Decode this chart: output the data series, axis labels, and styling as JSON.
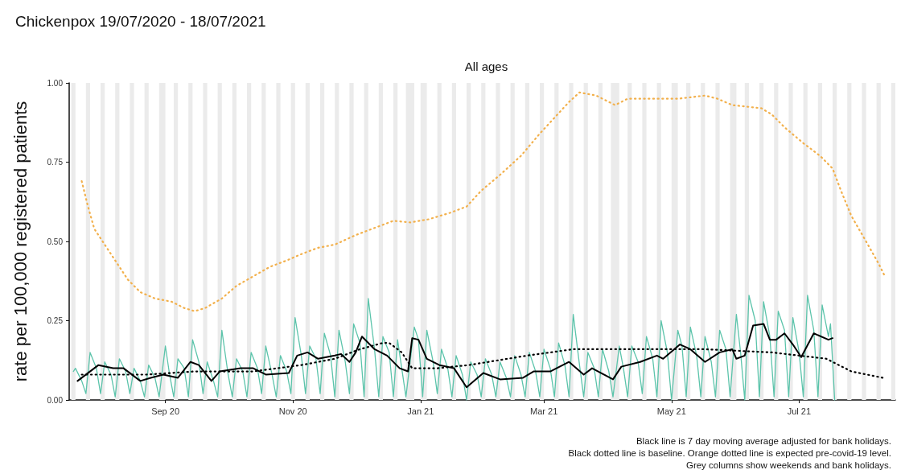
{
  "chart_data": {
    "type": "line",
    "title": "Chickenpox 19/07/2020 - 18/07/2021",
    "subtitle": "All ages",
    "ylabel": "rate per 100,000 registered patients",
    "annotations": [
      "Black line is 7 day moving average adjusted for bank holidays.",
      "Black dotted line is baseline. Orange dotted line is expected pre-covid-19 level.",
      "Grey columns show weekends and bank holidays."
    ],
    "marker": "none",
    "xlim": [
      "2020-07-17",
      "2021-08-16"
    ],
    "xticks": [
      {
        "value": "2020-09-01",
        "label": "Sep 20"
      },
      {
        "value": "2020-11-01",
        "label": "Nov 20"
      },
      {
        "value": "2021-01-01",
        "label": "Jan 21"
      },
      {
        "value": "2021-03-01",
        "label": "Mar 21"
      },
      {
        "value": "2021-05-01",
        "label": "May 21"
      },
      {
        "value": "2021-07-01",
        "label": "Jul 21"
      }
    ],
    "ylim": [
      0,
      1
    ],
    "yticks": [
      {
        "value": 0,
        "label": "0.00"
      },
      {
        "value": 0.25,
        "label": "0.25"
      },
      {
        "value": 0.5,
        "label": "0.50"
      },
      {
        "value": 0.75,
        "label": "0.75"
      },
      {
        "value": 1,
        "label": "1.00"
      }
    ],
    "series": [
      {
        "color": "#5cc4ab",
        "line_style": "solid",
        "x": [
          "2020-07-19",
          "2020-07-20",
          "2020-07-23",
          "2020-07-25",
          "2020-07-27",
          "2020-07-30",
          "2020-08-01",
          "2020-08-03",
          "2020-08-06",
          "2020-08-08",
          "2020-08-10",
          "2020-08-13",
          "2020-08-15",
          "2020-08-17",
          "2020-08-20",
          "2020-08-22",
          "2020-08-24",
          "2020-08-27",
          "2020-08-29",
          "2020-09-01",
          "2020-09-03",
          "2020-09-05",
          "2020-09-07",
          "2020-09-10",
          "2020-09-12",
          "2020-09-14",
          "2020-09-17",
          "2020-09-19",
          "2020-09-21",
          "2020-09-24",
          "2020-09-26",
          "2020-09-28",
          "2020-10-01",
          "2020-10-03",
          "2020-10-05",
          "2020-10-08",
          "2020-10-10",
          "2020-10-12",
          "2020-10-15",
          "2020-10-17",
          "2020-10-19",
          "2020-10-22",
          "2020-10-24",
          "2020-10-26",
          "2020-10-29",
          "2020-10-31",
          "2020-11-02",
          "2020-11-05",
          "2020-11-07",
          "2020-11-09",
          "2020-11-12",
          "2020-11-14",
          "2020-11-16",
          "2020-11-19",
          "2020-11-21",
          "2020-11-23",
          "2020-11-26",
          "2020-11-28",
          "2020-11-30",
          "2020-12-03",
          "2020-12-05",
          "2020-12-07",
          "2020-12-10",
          "2020-12-12",
          "2020-12-14",
          "2020-12-17",
          "2020-12-19",
          "2020-12-21",
          "2020-12-23",
          "2020-12-25",
          "2020-12-29",
          "2020-12-31",
          "2021-01-02",
          "2021-01-04",
          "2021-01-07",
          "2021-01-09",
          "2021-01-11",
          "2021-01-14",
          "2021-01-16",
          "2021-01-18",
          "2021-01-21",
          "2021-01-23",
          "2021-01-25",
          "2021-01-28",
          "2021-01-30",
          "2021-02-01",
          "2021-02-04",
          "2021-02-06",
          "2021-02-08",
          "2021-02-11",
          "2021-02-13",
          "2021-02-15",
          "2021-02-18",
          "2021-02-20",
          "2021-02-22",
          "2021-02-25",
          "2021-02-27",
          "2021-03-01",
          "2021-03-04",
          "2021-03-06",
          "2021-03-08",
          "2021-03-11",
          "2021-03-13",
          "2021-03-15",
          "2021-03-18",
          "2021-03-20",
          "2021-03-22",
          "2021-03-25",
          "2021-03-27",
          "2021-03-29",
          "2021-04-01",
          "2021-04-03",
          "2021-04-06",
          "2021-04-08",
          "2021-04-10",
          "2021-04-12",
          "2021-04-15",
          "2021-04-17",
          "2021-04-19",
          "2021-04-22",
          "2021-04-24",
          "2021-04-26",
          "2021-04-29",
          "2021-05-01",
          "2021-05-04",
          "2021-05-06",
          "2021-05-08",
          "2021-05-10",
          "2021-05-13",
          "2021-05-15",
          "2021-05-17",
          "2021-05-20",
          "2021-05-22",
          "2021-05-24",
          "2021-05-27",
          "2021-05-29",
          "2021-06-01",
          "2021-06-03",
          "2021-06-05",
          "2021-06-07",
          "2021-06-10",
          "2021-06-12",
          "2021-06-14",
          "2021-06-17",
          "2021-06-19",
          "2021-06-21",
          "2021-06-24",
          "2021-06-26",
          "2021-06-28",
          "2021-07-01",
          "2021-07-03",
          "2021-07-05",
          "2021-07-08",
          "2021-07-10",
          "2021-07-12",
          "2021-07-15",
          "2021-07-16",
          "2021-07-18"
        ],
        "values": [
          0.09,
          0.1,
          0.06,
          0.02,
          0.15,
          0.1,
          0.02,
          0.12,
          0.08,
          0.01,
          0.13,
          0.09,
          0.02,
          0.1,
          0.06,
          0.01,
          0.11,
          0.07,
          0.01,
          0.17,
          0.08,
          0.01,
          0.13,
          0.1,
          0.01,
          0.19,
          0.12,
          0.02,
          0.12,
          0.06,
          0.01,
          0.22,
          0.08,
          0.01,
          0.13,
          0.09,
          0.01,
          0.15,
          0.1,
          0.02,
          0.17,
          0.08,
          0.01,
          0.14,
          0.09,
          0.02,
          0.26,
          0.14,
          0.02,
          0.17,
          0.13,
          0.02,
          0.21,
          0.14,
          0.01,
          0.22,
          0.12,
          0.02,
          0.24,
          0.18,
          0.01,
          0.32,
          0.16,
          0.01,
          0.2,
          0.15,
          0.01,
          0.19,
          0.1,
          0.01,
          0.23,
          0.19,
          0.01,
          0.22,
          0.12,
          0.02,
          0.16,
          0.1,
          0.01,
          0.14,
          0.08,
          0.0,
          0.12,
          0.08,
          0.01,
          0.13,
          0.08,
          0.01,
          0.12,
          0.07,
          0.01,
          0.14,
          0.08,
          0.01,
          0.15,
          0.09,
          0.01,
          0.16,
          0.1,
          0.01,
          0.18,
          0.11,
          0.01,
          0.27,
          0.11,
          0.01,
          0.15,
          0.1,
          0.01,
          0.16,
          0.09,
          0.01,
          0.17,
          0.1,
          0.01,
          0.17,
          0.12,
          0.02,
          0.2,
          0.13,
          0.01,
          0.25,
          0.15,
          0.0,
          0.22,
          0.17,
          0.01,
          0.23,
          0.14,
          0.01,
          0.2,
          0.12,
          0.01,
          0.22,
          0.16,
          0.01,
          0.27,
          0.15,
          0.0,
          0.33,
          0.25,
          0.01,
          0.31,
          0.2,
          0.01,
          0.28,
          0.22,
          0.01,
          0.26,
          0.15,
          0.01,
          0.33,
          0.22,
          0.01,
          0.3,
          0.2,
          0.24,
          0.0
        ]
      },
      {
        "color": "#000000",
        "line_style": "solid",
        "x": [
          "2020-07-21",
          "2020-07-31",
          "2020-08-07",
          "2020-08-12",
          "2020-08-20",
          "2020-08-25",
          "2020-08-31",
          "2020-09-07",
          "2020-09-13",
          "2020-09-17",
          "2020-09-23",
          "2020-09-27",
          "2020-10-07",
          "2020-10-13",
          "2020-10-19",
          "2020-10-30",
          "2020-11-03",
          "2020-11-08",
          "2020-11-13",
          "2020-11-21",
          "2020-11-24",
          "2020-11-28",
          "2020-12-01",
          "2020-12-04",
          "2020-12-10",
          "2020-12-16",
          "2020-12-22",
          "2020-12-26",
          "2020-12-28",
          "2020-12-31",
          "2021-01-04",
          "2021-01-10",
          "2021-01-17",
          "2021-01-23",
          "2021-01-31",
          "2021-02-08",
          "2021-02-19",
          "2021-02-24",
          "2021-03-04",
          "2021-03-13",
          "2021-03-20",
          "2021-03-24",
          "2021-04-03",
          "2021-04-07",
          "2021-04-16",
          "2021-04-24",
          "2021-04-27",
          "2021-05-05",
          "2021-05-10",
          "2021-05-17",
          "2021-05-24",
          "2021-05-30",
          "2021-06-01",
          "2021-06-05",
          "2021-06-09",
          "2021-06-14",
          "2021-06-17",
          "2021-06-20",
          "2021-06-24",
          "2021-06-28",
          "2021-07-02",
          "2021-07-08",
          "2021-07-15",
          "2021-07-17"
        ],
        "values": [
          0.06,
          0.11,
          0.1,
          0.1,
          0.06,
          0.07,
          0.08,
          0.07,
          0.12,
          0.11,
          0.06,
          0.09,
          0.1,
          0.1,
          0.08,
          0.085,
          0.14,
          0.15,
          0.13,
          0.14,
          0.145,
          0.12,
          0.15,
          0.2,
          0.16,
          0.14,
          0.1,
          0.09,
          0.195,
          0.19,
          0.13,
          0.11,
          0.1,
          0.04,
          0.085,
          0.065,
          0.07,
          0.09,
          0.09,
          0.12,
          0.08,
          0.1,
          0.065,
          0.105,
          0.12,
          0.14,
          0.13,
          0.175,
          0.16,
          0.12,
          0.15,
          0.16,
          0.13,
          0.14,
          0.235,
          0.24,
          0.19,
          0.19,
          0.21,
          0.175,
          0.135,
          0.21,
          0.19,
          0.195
        ]
      },
      {
        "color": "#000000",
        "line_style": "dotted",
        "x": [
          "2020-07-23",
          "2020-08-04",
          "2020-08-23",
          "2020-09-15",
          "2020-10-13",
          "2020-11-05",
          "2020-11-21",
          "2020-12-03",
          "2020-12-14",
          "2020-12-17",
          "2020-12-23",
          "2020-12-28",
          "2021-01-09",
          "2021-01-24",
          "2021-02-21",
          "2021-03-15",
          "2021-04-04",
          "2021-05-17",
          "2021-06-18",
          "2021-07-14",
          "2021-07-26",
          "2021-08-10"
        ],
        "values": [
          0.08,
          0.08,
          0.08,
          0.09,
          0.09,
          0.11,
          0.13,
          0.16,
          0.18,
          0.18,
          0.15,
          0.1,
          0.1,
          0.11,
          0.14,
          0.16,
          0.16,
          0.16,
          0.15,
          0.13,
          0.09,
          0.07
        ]
      },
      {
        "color": "#f2b04c",
        "line_style": "dotted",
        "x": [
          "2020-07-23",
          "2020-07-26",
          "2020-07-29",
          "2020-08-03",
          "2020-08-09",
          "2020-08-14",
          "2020-08-20",
          "2020-08-27",
          "2020-09-04",
          "2020-09-10",
          "2020-09-15",
          "2020-09-20",
          "2020-09-28",
          "2020-10-05",
          "2020-10-13",
          "2020-10-21",
          "2020-10-29",
          "2020-11-05",
          "2020-11-13",
          "2020-11-21",
          "2020-12-01",
          "2020-12-05",
          "2020-12-19",
          "2020-12-27",
          "2021-01-05",
          "2021-01-15",
          "2021-01-23",
          "2021-01-30",
          "2021-02-08",
          "2021-02-18",
          "2021-02-27",
          "2021-03-06",
          "2021-03-13",
          "2021-03-18",
          "2021-03-26",
          "2021-04-04",
          "2021-04-10",
          "2021-05-04",
          "2021-05-17",
          "2021-05-23",
          "2021-05-30",
          "2021-06-13",
          "2021-06-18",
          "2021-06-24",
          "2021-07-03",
          "2021-07-11",
          "2021-07-17",
          "2021-07-21",
          "2021-07-26",
          "2021-08-02",
          "2021-08-08",
          "2021-08-11"
        ],
        "values": [
          0.69,
          0.61,
          0.54,
          0.49,
          0.43,
          0.38,
          0.34,
          0.32,
          0.31,
          0.29,
          0.28,
          0.29,
          0.32,
          0.36,
          0.39,
          0.42,
          0.44,
          0.46,
          0.48,
          0.49,
          0.52,
          0.53,
          0.565,
          0.56,
          0.57,
          0.59,
          0.61,
          0.66,
          0.71,
          0.77,
          0.84,
          0.89,
          0.94,
          0.97,
          0.96,
          0.93,
          0.95,
          0.95,
          0.96,
          0.95,
          0.93,
          0.92,
          0.9,
          0.86,
          0.81,
          0.77,
          0.73,
          0.66,
          0.58,
          0.5,
          0.43,
          0.39
        ]
      }
    ],
    "bands": [
      {
        "axis": "x",
        "from": "2020-07-18",
        "to": "2020-07-20",
        "color": "#ebebeb"
      },
      {
        "axis": "x",
        "from": "2020-07-25",
        "to": "2020-07-27",
        "color": "#ebebeb"
      },
      {
        "axis": "x",
        "from": "2020-08-01",
        "to": "2020-08-03",
        "color": "#ebebeb"
      },
      {
        "axis": "x",
        "from": "2020-08-08",
        "to": "2020-08-10",
        "color": "#ebebeb"
      },
      {
        "axis": "x",
        "from": "2020-08-15",
        "to": "2020-08-17",
        "color": "#ebebeb"
      },
      {
        "axis": "x",
        "from": "2020-08-22",
        "to": "2020-08-24",
        "color": "#ebebeb"
      },
      {
        "axis": "x",
        "from": "2020-08-29",
        "to": "2020-09-01",
        "color": "#ebebeb"
      },
      {
        "axis": "x",
        "from": "2020-09-05",
        "to": "2020-09-07",
        "color": "#ebebeb"
      },
      {
        "axis": "x",
        "from": "2020-09-12",
        "to": "2020-09-14",
        "color": "#ebebeb"
      },
      {
        "axis": "x",
        "from": "2020-09-19",
        "to": "2020-09-21",
        "color": "#ebebeb"
      },
      {
        "axis": "x",
        "from": "2020-09-26",
        "to": "2020-09-28",
        "color": "#ebebeb"
      },
      {
        "axis": "x",
        "from": "2020-10-03",
        "to": "2020-10-05",
        "color": "#ebebeb"
      },
      {
        "axis": "x",
        "from": "2020-10-10",
        "to": "2020-10-12",
        "color": "#ebebeb"
      },
      {
        "axis": "x",
        "from": "2020-10-17",
        "to": "2020-10-19",
        "color": "#ebebeb"
      },
      {
        "axis": "x",
        "from": "2020-10-24",
        "to": "2020-10-26",
        "color": "#ebebeb"
      },
      {
        "axis": "x",
        "from": "2020-10-31",
        "to": "2020-11-02",
        "color": "#ebebeb"
      },
      {
        "axis": "x",
        "from": "2020-11-07",
        "to": "2020-11-09",
        "color": "#ebebeb"
      },
      {
        "axis": "x",
        "from": "2020-11-14",
        "to": "2020-11-16",
        "color": "#ebebeb"
      },
      {
        "axis": "x",
        "from": "2020-11-21",
        "to": "2020-11-23",
        "color": "#ebebeb"
      },
      {
        "axis": "x",
        "from": "2020-11-28",
        "to": "2020-11-30",
        "color": "#ebebeb"
      },
      {
        "axis": "x",
        "from": "2020-12-05",
        "to": "2020-12-07",
        "color": "#ebebeb"
      },
      {
        "axis": "x",
        "from": "2020-12-12",
        "to": "2020-12-14",
        "color": "#ebebeb"
      },
      {
        "axis": "x",
        "from": "2020-12-19",
        "to": "2020-12-21",
        "color": "#ebebeb"
      },
      {
        "axis": "x",
        "from": "2020-12-25",
        "to": "2020-12-29",
        "color": "#ebebeb"
      },
      {
        "axis": "x",
        "from": "2021-01-01",
        "to": "2021-01-04",
        "color": "#ebebeb"
      },
      {
        "axis": "x",
        "from": "2021-01-09",
        "to": "2021-01-11",
        "color": "#ebebeb"
      },
      {
        "axis": "x",
        "from": "2021-01-16",
        "to": "2021-01-18",
        "color": "#ebebeb"
      },
      {
        "axis": "x",
        "from": "2021-01-23",
        "to": "2021-01-25",
        "color": "#ebebeb"
      },
      {
        "axis": "x",
        "from": "2021-01-30",
        "to": "2021-02-01",
        "color": "#ebebeb"
      },
      {
        "axis": "x",
        "from": "2021-02-06",
        "to": "2021-02-08",
        "color": "#ebebeb"
      },
      {
        "axis": "x",
        "from": "2021-02-13",
        "to": "2021-02-15",
        "color": "#ebebeb"
      },
      {
        "axis": "x",
        "from": "2021-02-20",
        "to": "2021-02-22",
        "color": "#ebebeb"
      },
      {
        "axis": "x",
        "from": "2021-02-27",
        "to": "2021-03-01",
        "color": "#ebebeb"
      },
      {
        "axis": "x",
        "from": "2021-03-06",
        "to": "2021-03-08",
        "color": "#ebebeb"
      },
      {
        "axis": "x",
        "from": "2021-03-13",
        "to": "2021-03-15",
        "color": "#ebebeb"
      },
      {
        "axis": "x",
        "from": "2021-03-20",
        "to": "2021-03-22",
        "color": "#ebebeb"
      },
      {
        "axis": "x",
        "from": "2021-03-27",
        "to": "2021-03-29",
        "color": "#ebebeb"
      },
      {
        "axis": "x",
        "from": "2021-04-02",
        "to": "2021-04-06",
        "color": "#ebebeb"
      },
      {
        "axis": "x",
        "from": "2021-04-10",
        "to": "2021-04-12",
        "color": "#ebebeb"
      },
      {
        "axis": "x",
        "from": "2021-04-17",
        "to": "2021-04-19",
        "color": "#ebebeb"
      },
      {
        "axis": "x",
        "from": "2021-04-24",
        "to": "2021-04-26",
        "color": "#ebebeb"
      },
      {
        "axis": "x",
        "from": "2021-05-01",
        "to": "2021-05-04",
        "color": "#ebebeb"
      },
      {
        "axis": "x",
        "from": "2021-05-08",
        "to": "2021-05-10",
        "color": "#ebebeb"
      },
      {
        "axis": "x",
        "from": "2021-05-15",
        "to": "2021-05-17",
        "color": "#ebebeb"
      },
      {
        "axis": "x",
        "from": "2021-05-22",
        "to": "2021-05-24",
        "color": "#ebebeb"
      },
      {
        "axis": "x",
        "from": "2021-05-29",
        "to": "2021-06-01",
        "color": "#ebebeb"
      },
      {
        "axis": "x",
        "from": "2021-06-05",
        "to": "2021-06-07",
        "color": "#ebebeb"
      },
      {
        "axis": "x",
        "from": "2021-06-12",
        "to": "2021-06-14",
        "color": "#ebebeb"
      },
      {
        "axis": "x",
        "from": "2021-06-19",
        "to": "2021-06-21",
        "color": "#ebebeb"
      },
      {
        "axis": "x",
        "from": "2021-06-26",
        "to": "2021-06-28",
        "color": "#ebebeb"
      },
      {
        "axis": "x",
        "from": "2021-07-03",
        "to": "2021-07-05",
        "color": "#ebebeb"
      },
      {
        "axis": "x",
        "from": "2021-07-10",
        "to": "2021-07-12",
        "color": "#ebebeb"
      },
      {
        "axis": "x",
        "from": "2021-07-17",
        "to": "2021-07-19",
        "color": "#ebebeb"
      },
      {
        "axis": "x",
        "from": "2021-07-24",
        "to": "2021-07-26",
        "color": "#ebebeb"
      },
      {
        "axis": "x",
        "from": "2021-07-31",
        "to": "2021-08-02",
        "color": "#ebebeb"
      },
      {
        "axis": "x",
        "from": "2021-08-07",
        "to": "2021-08-09",
        "color": "#ebebeb"
      },
      {
        "axis": "x",
        "from": "2021-08-14",
        "to": "2021-08-16",
        "color": "#ebebeb"
      }
    ]
  }
}
